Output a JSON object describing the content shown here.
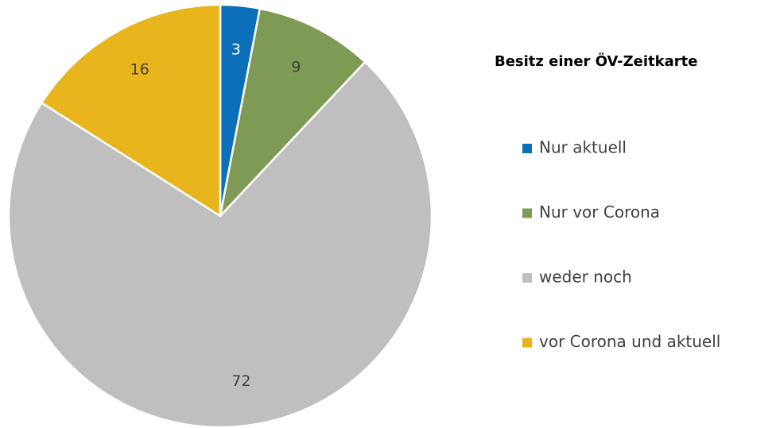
{
  "chart_data": {
    "type": "pie",
    "legend_title": "Besitz einer ÖV-Zeitkarte",
    "categories": [
      "Nur aktuell",
      "Nur vor Corona",
      "weder noch",
      "vor Corona und aktuell"
    ],
    "values": [
      3,
      9,
      72,
      16
    ],
    "colors": [
      "#0b6fb9",
      "#7f9a55",
      "#bfbfbf",
      "#e8b51c"
    ],
    "legend": "right"
  }
}
